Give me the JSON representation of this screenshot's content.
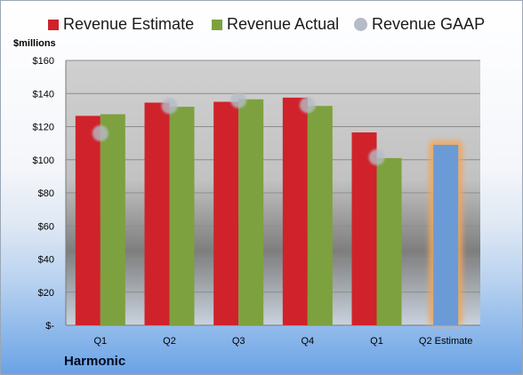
{
  "chart_data": {
    "type": "bar",
    "title": "",
    "ylabel": "$millions",
    "xlabel": "",
    "ylim": [
      0,
      160
    ],
    "yticks": [
      0,
      20,
      40,
      60,
      80,
      100,
      120,
      140,
      160
    ],
    "ytick_labels": [
      "$-",
      "$20",
      "$40",
      "$60",
      "$80",
      "$100",
      "$120",
      "$140",
      "$160"
    ],
    "categories": [
      "Q1",
      "Q2",
      "Q3",
      "Q4",
      "Q1",
      "Q2 Estimate"
    ],
    "series": [
      {
        "name": "Revenue Estimate",
        "color": "#d0222a",
        "values": [
          126.5,
          134.5,
          135,
          137.5,
          116.5,
          null
        ]
      },
      {
        "name": "Revenue Actual",
        "color": "#7da13f",
        "values": [
          127.5,
          132,
          136.5,
          132.5,
          101,
          null
        ]
      },
      {
        "name": "Revenue GAAP",
        "color": "#b5bcc6",
        "marker": "circle",
        "values": [
          116,
          132.5,
          136,
          133,
          101.5,
          null
        ]
      },
      {
        "name": "",
        "color": "#6a9bd6",
        "values": [
          null,
          null,
          null,
          null,
          null,
          109
        ]
      }
    ],
    "legend_position": "top",
    "grid": true
  },
  "brand": "Harmonic"
}
